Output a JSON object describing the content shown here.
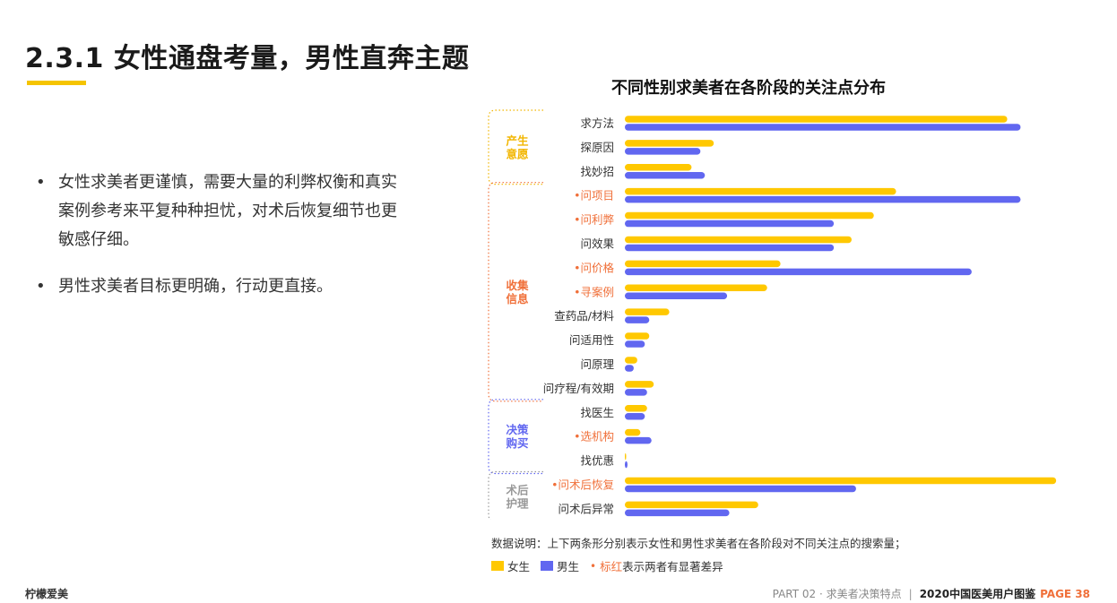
{
  "header": {
    "title": "2.3.1 女性通盘考量，男性直奔主题"
  },
  "bullets": [
    "女性求美者更谨慎，需要大量的利弊权衡和真实案例参考来平复种种担忧，对术后恢复细节也更敏感仔细。",
    "男性求美者目标更明确，行动更直接。"
  ],
  "bullet_symbol": "•",
  "chart_data": {
    "type": "bar",
    "orientation": "horizontal",
    "title": "不同性别求美者在各阶段的关注点分布",
    "categories": [
      "求方法",
      "探原因",
      "找妙招",
      "问项目",
      "问利弊",
      "问效果",
      "问价格",
      "寻案例",
      "查药品/材料",
      "问适用性",
      "问原理",
      "问疗程/有效期",
      "找医生",
      "选机构",
      "找优惠",
      "问术后恢复",
      "问术后异常"
    ],
    "highlighted": [
      false,
      false,
      false,
      true,
      true,
      false,
      true,
      true,
      false,
      false,
      false,
      false,
      false,
      true,
      false,
      true,
      false
    ],
    "series": [
      {
        "name": "女生",
        "color": "#ffc800",
        "values": [
          86,
          20,
          15,
          61,
          56,
          51,
          35,
          32,
          10,
          5.5,
          2.8,
          6.5,
          5,
          3.5,
          0.3,
          97,
          30
        ]
      },
      {
        "name": "男生",
        "color": "#6167f0",
        "values": [
          89,
          17,
          18,
          89,
          47,
          47,
          78,
          23,
          5.5,
          4.5,
          2,
          5,
          4.5,
          6,
          0.6,
          52,
          23.5
        ]
      }
    ],
    "xlim": [
      0,
      100
    ],
    "groups": [
      {
        "label": "产生\n意愿",
        "color": "#f2b600",
        "start": 0,
        "end": 2
      },
      {
        "label": "收集\n信息",
        "color": "#f0703a",
        "start": 3,
        "end": 11
      },
      {
        "label": "决策\n购买",
        "color": "#6167f0",
        "start": 12,
        "end": 14
      },
      {
        "label": "术后\n护理",
        "color": "#999999",
        "start": 15,
        "end": 16
      }
    ],
    "highlight_color": "#f0703a",
    "highlight_marker": "•",
    "note": "数据说明：上下两条形分别表示女性和男性求美者在各阶段对不同关注点的搜索量；",
    "legend": {
      "female": "女生",
      "male": "男生",
      "marker_text_red": "标红",
      "marker_text_rest": "表示两者有显著差异"
    }
  },
  "footer": {
    "brand": "柠檬爱美",
    "part": "PART 02 · 求美者决策特点",
    "separator": "|",
    "report": "2020中国医美用户图鉴",
    "page": "PAGE 38"
  }
}
